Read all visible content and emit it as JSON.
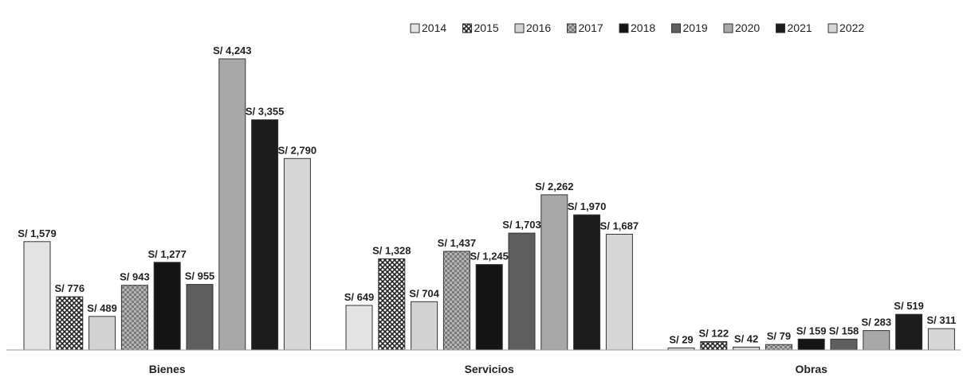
{
  "chart_data": {
    "type": "bar",
    "title": "",
    "xlabel": "",
    "ylabel": "",
    "ylim": [
      0,
      4500
    ],
    "grid": false,
    "legend_position": "top-right",
    "categories": [
      "Bienes",
      "Servicios",
      "Obras"
    ],
    "series": [
      {
        "name": "2014",
        "values": [
          1579,
          649,
          29
        ],
        "labels": [
          "S/ 1,579",
          "S/ 649",
          "S/ 29"
        ],
        "color": "#e3e3e3",
        "pattern": "none"
      },
      {
        "name": "2015",
        "values": [
          776,
          1328,
          122
        ],
        "labels": [
          "S/ 776",
          "S/ 1,328",
          "S/ 122"
        ],
        "color": "#8f8f8f",
        "pattern": "crosshatch"
      },
      {
        "name": "2016",
        "values": [
          489,
          704,
          42
        ],
        "labels": [
          "S/ 489",
          "S/ 704",
          "S/ 42"
        ],
        "color": "#d2d2d2",
        "pattern": "none"
      },
      {
        "name": "2017",
        "values": [
          943,
          1437,
          79
        ],
        "labels": [
          "S/ 943",
          "S/ 1,437",
          "S/ 79"
        ],
        "color": "#8a8a8a",
        "pattern": "checker"
      },
      {
        "name": "2018",
        "values": [
          1277,
          1245,
          159
        ],
        "labels": [
          "S/ 1,277",
          "S/ 1,245",
          "S/ 159"
        ],
        "color": "#141414",
        "pattern": "none"
      },
      {
        "name": "2019",
        "values": [
          955,
          1703,
          158
        ],
        "labels": [
          "S/ 955",
          "S/ 1,703",
          "S/ 158"
        ],
        "color": "#5e5e5e",
        "pattern": "none"
      },
      {
        "name": "2020",
        "values": [
          4243,
          2262,
          283
        ],
        "labels": [
          "S/ 4,243",
          "S/ 2,262",
          "S/ 283"
        ],
        "color": "#a8a8a8",
        "pattern": "none"
      },
      {
        "name": "2021",
        "values": [
          3355,
          1970,
          519
        ],
        "labels": [
          "S/ 3,355",
          "S/ 1,970",
          "S/ 519"
        ],
        "color": "#1c1c1c",
        "pattern": "none"
      },
      {
        "name": "2022",
        "values": [
          2790,
          1687,
          311
        ],
        "labels": [
          "S/ 2,790",
          "S/ 1,687",
          "S/ 311"
        ],
        "color": "#d6d6d6",
        "pattern": "none"
      }
    ]
  }
}
